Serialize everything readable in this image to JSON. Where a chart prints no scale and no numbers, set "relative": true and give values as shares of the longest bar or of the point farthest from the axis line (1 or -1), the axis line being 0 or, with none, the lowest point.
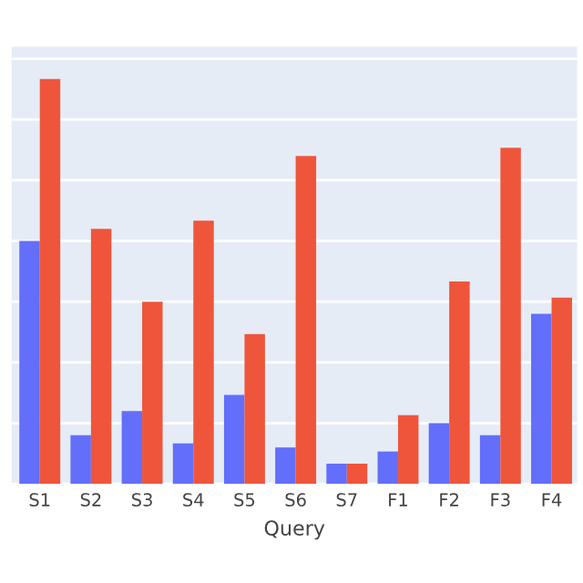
{
  "chart_data": {
    "type": "bar",
    "xlabel": "Query",
    "relative": true,
    "grid": "y",
    "categories": [
      "S1",
      "S2",
      "S3",
      "S4",
      "S5",
      "S6",
      "S7",
      "F1",
      "F2",
      "F3",
      "F4"
    ],
    "series": [
      {
        "color": "#636efa",
        "values": [
          0.6,
          0.12,
          0.18,
          0.1,
          0.22,
          0.09,
          0.05,
          0.08,
          0.15,
          0.12,
          0.42
        ]
      },
      {
        "color": "#ef553b",
        "values": [
          1.0,
          0.63,
          0.45,
          0.65,
          0.37,
          0.81,
          0.05,
          0.17,
          0.5,
          0.83,
          0.46
        ]
      }
    ]
  }
}
